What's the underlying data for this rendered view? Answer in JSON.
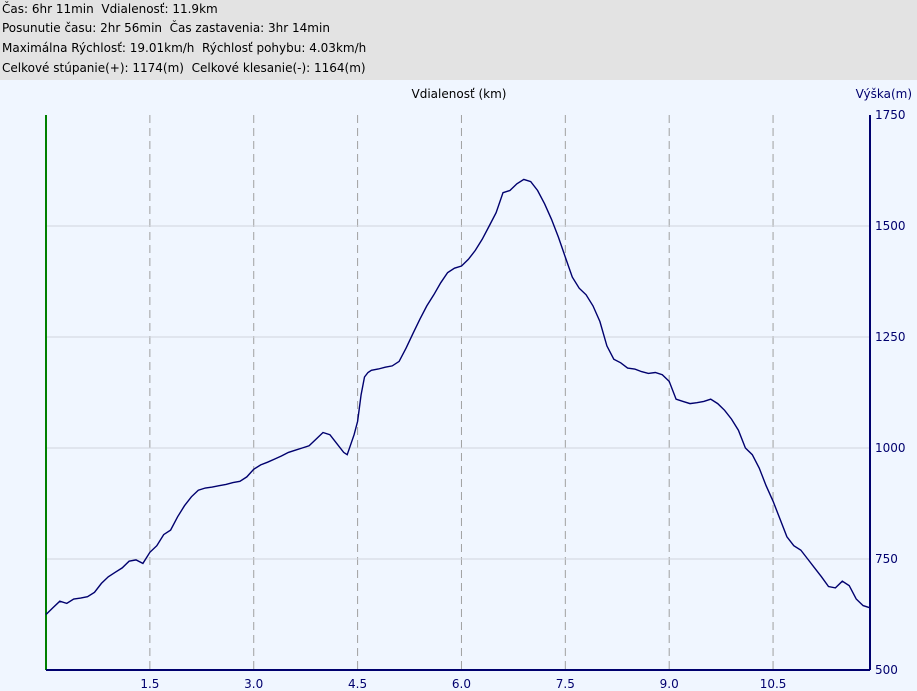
{
  "stats": {
    "line1": "Čas: 6hr 11min  Vdialenosť: 11.9km",
    "line2": "Posunutie času: 2hr 56min  Čas zastavenia: 3hr 14min",
    "line3": "Maximálna Rýchlosť: 19.01km/h  Rýchlosť pohybu: 4.03km/h",
    "line4": "Celkové stúpanie(+): 1174(m)  Celkové klesanie(-): 1164(m)"
  },
  "colors": {
    "background": "#f0f6ff",
    "stats_background": "#e3e3e3",
    "line": "#00006e",
    "left_axis": "#008000",
    "right_axis": "#00006e",
    "grid": "#a0a0a0"
  },
  "chart_data": {
    "type": "line",
    "title": "",
    "xlabel": "Vdialenosť (km)",
    "ylabel": "Výška(m)",
    "xlim": [
      0,
      11.9
    ],
    "ylim": [
      500,
      1750
    ],
    "x_ticks": [
      "1.5",
      "3.0",
      "4.5",
      "6.0",
      "7.5",
      "9.0",
      "10.5"
    ],
    "x_tick_values": [
      1.5,
      3.0,
      4.5,
      6.0,
      7.5,
      9.0,
      10.5
    ],
    "y_ticks": [
      "500",
      "750",
      "1000",
      "1250",
      "1500",
      "1750"
    ],
    "y_tick_values": [
      500,
      750,
      1000,
      1250,
      1500,
      1750
    ],
    "grid": true,
    "series": [
      {
        "x": [
          0.0,
          0.1,
          0.2,
          0.3,
          0.4,
          0.5,
          0.6,
          0.7,
          0.8,
          0.9,
          1.0,
          1.1,
          1.2,
          1.3,
          1.4,
          1.5,
          1.6,
          1.7,
          1.8,
          1.9,
          2.0,
          2.1,
          2.2,
          2.3,
          2.4,
          2.5,
          2.6,
          2.7,
          2.8,
          2.9,
          3.0,
          3.1,
          3.2,
          3.3,
          3.4,
          3.5,
          3.6,
          3.7,
          3.8,
          3.9,
          4.0,
          4.1,
          4.2,
          4.3,
          4.35,
          4.45,
          4.5,
          4.55,
          4.6,
          4.65,
          4.7,
          4.8,
          4.9,
          5.0,
          5.1,
          5.2,
          5.3,
          5.4,
          5.5,
          5.6,
          5.7,
          5.8,
          5.9,
          6.0,
          6.1,
          6.2,
          6.3,
          6.4,
          6.5,
          6.6,
          6.7,
          6.8,
          6.9,
          7.0,
          7.1,
          7.2,
          7.3,
          7.4,
          7.5,
          7.6,
          7.7,
          7.8,
          7.9,
          8.0,
          8.1,
          8.2,
          8.3,
          8.4,
          8.5,
          8.6,
          8.7,
          8.8,
          8.9,
          9.0,
          9.1,
          9.2,
          9.3,
          9.4,
          9.5,
          9.6,
          9.7,
          9.8,
          9.9,
          10.0,
          10.1,
          10.2,
          10.3,
          10.4,
          10.5,
          10.6,
          10.7,
          10.8,
          10.9,
          11.0,
          11.1,
          11.2,
          11.3,
          11.4,
          11.5,
          11.6,
          11.7,
          11.8,
          11.9
        ],
        "y": [
          625,
          640,
          655,
          650,
          660,
          662,
          665,
          675,
          695,
          710,
          720,
          730,
          745,
          748,
          740,
          765,
          780,
          805,
          815,
          845,
          870,
          890,
          905,
          910,
          912,
          915,
          918,
          922,
          925,
          935,
          952,
          962,
          968,
          975,
          982,
          990,
          995,
          1000,
          1005,
          1020,
          1035,
          1030,
          1010,
          990,
          985,
          1030,
          1060,
          1120,
          1160,
          1170,
          1175,
          1178,
          1182,
          1185,
          1195,
          1225,
          1258,
          1290,
          1320,
          1345,
          1372,
          1395,
          1405,
          1410,
          1425,
          1445,
          1470,
          1500,
          1530,
          1575,
          1580,
          1595,
          1605,
          1600,
          1580,
          1550,
          1515,
          1475,
          1430,
          1385,
          1360,
          1345,
          1320,
          1285,
          1230,
          1200,
          1192,
          1180,
          1178,
          1172,
          1168,
          1170,
          1165,
          1150,
          1110,
          1105,
          1100,
          1102,
          1105,
          1110,
          1100,
          1085,
          1065,
          1040,
          1000,
          985,
          955,
          915,
          880,
          840,
          800,
          780,
          770,
          750,
          730,
          710,
          688,
          685,
          700,
          690,
          660,
          645,
          640
        ]
      }
    ]
  }
}
